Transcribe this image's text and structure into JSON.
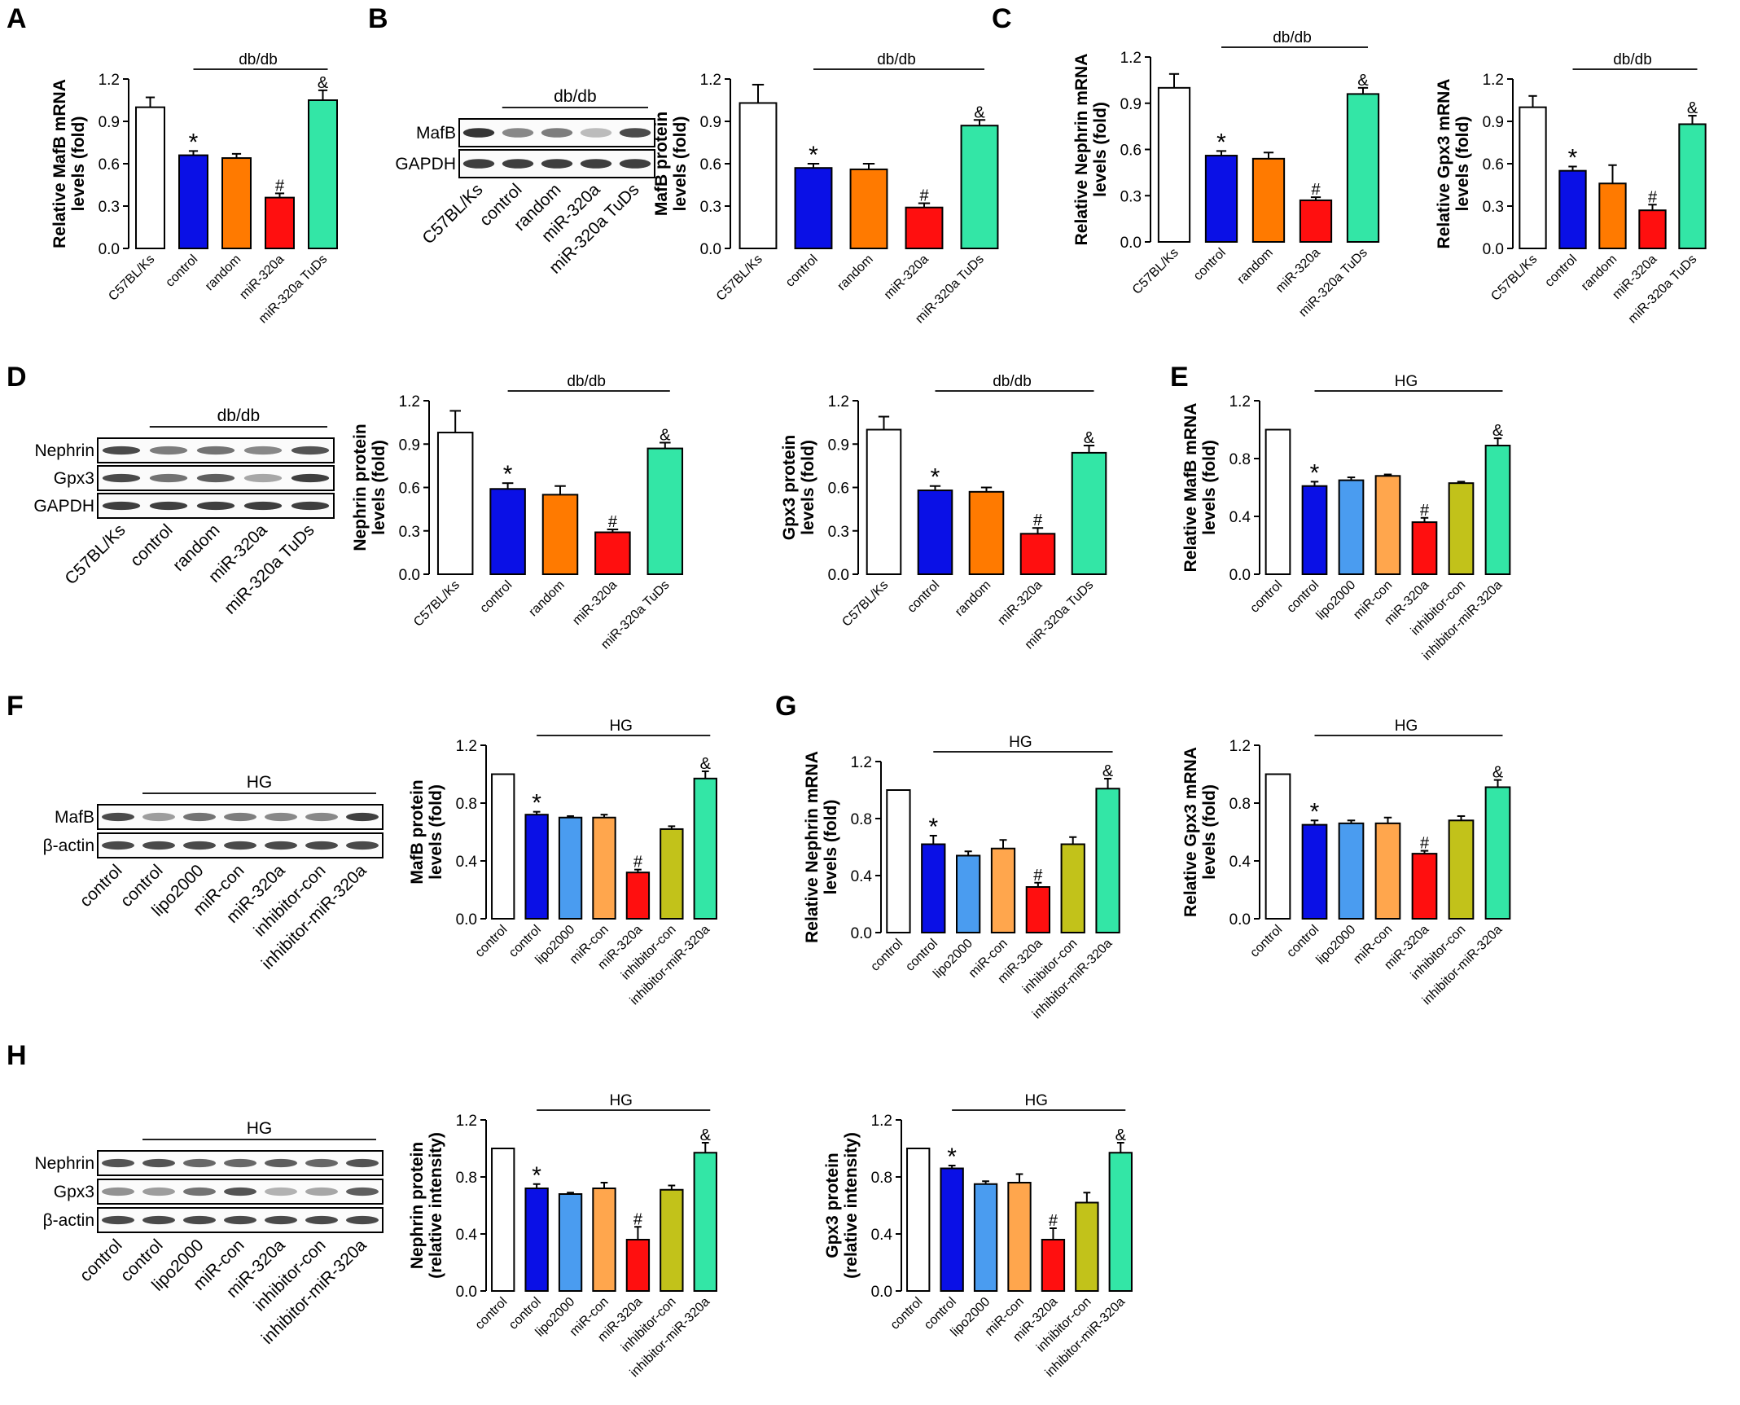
{
  "colors": {
    "white": "#ffffff",
    "blue": "#0a10e6",
    "orange": "#ff7a00",
    "red": "#ff0f0f",
    "teal": "#33e6a6",
    "lightblue": "#4a9cf0",
    "lightorange": "#ffa64d",
    "olive": "#c2c21a",
    "band": "#2a2a2a"
  },
  "panel_letters": {
    "A": "A",
    "B": "B",
    "C": "C",
    "D": "D",
    "E": "E",
    "F": "F",
    "G": "G",
    "H": "H"
  },
  "chart_data": [
    {
      "id": "A",
      "type": "bar",
      "ylabel": [
        "Relative MafB mRNA",
        "levels (fold)"
      ],
      "categories": [
        "C57BL/Ks",
        "control",
        "random",
        "miR-320a",
        "miR-320a TuDs"
      ],
      "values": [
        1.0,
        0.66,
        0.64,
        0.36,
        1.05
      ],
      "errors": [
        0.07,
        0.03,
        0.03,
        0.03,
        0.07
      ],
      "colors": [
        "white",
        "blue",
        "orange",
        "red",
        "teal"
      ],
      "ylim": [
        0,
        1.2
      ],
      "yticks": [
        "0.0",
        "0.3",
        "0.6",
        "0.9",
        "1.2"
      ],
      "group_label": "db/db",
      "symbols": [
        "",
        "*",
        "",
        "#",
        "&"
      ]
    },
    {
      "id": "B",
      "type": "bar",
      "ylabel": [
        "MafB protein",
        "levels (fold)"
      ],
      "categories": [
        "C57BL/Ks",
        "control",
        "random",
        "miR-320a",
        "miR-320a TuDs"
      ],
      "values": [
        1.03,
        0.57,
        0.56,
        0.29,
        0.87
      ],
      "errors": [
        0.13,
        0.03,
        0.04,
        0.03,
        0.04
      ],
      "colors": [
        "white",
        "blue",
        "orange",
        "red",
        "teal"
      ],
      "ylim": [
        0,
        1.2
      ],
      "yticks": [
        "0.0",
        "0.3",
        "0.6",
        "0.9",
        "1.2"
      ],
      "group_label": "db/db",
      "symbols": [
        "",
        "*",
        "",
        "#",
        "&"
      ]
    },
    {
      "id": "C1",
      "type": "bar",
      "ylabel": [
        "Relative Nephrin mRNA",
        "levels (fold)"
      ],
      "categories": [
        "C57BL/Ks",
        "control",
        "random",
        "miR-320a",
        "miR-320a TuDs"
      ],
      "values": [
        1.0,
        0.56,
        0.54,
        0.27,
        0.96
      ],
      "errors": [
        0.09,
        0.03,
        0.04,
        0.02,
        0.04
      ],
      "colors": [
        "white",
        "blue",
        "orange",
        "red",
        "teal"
      ],
      "ylim": [
        0,
        1.2
      ],
      "yticks": [
        "0.0",
        "0.3",
        "0.6",
        "0.9",
        "1.2"
      ],
      "group_label": "db/db",
      "symbols": [
        "",
        "*",
        "",
        "#",
        "&"
      ]
    },
    {
      "id": "C2",
      "type": "bar",
      "ylabel": [
        "Relative Gpx3 mRNA",
        "levels (fold)"
      ],
      "categories": [
        "C57BL/Ks",
        "control",
        "random",
        "miR-320a",
        "miR-320a TuDs"
      ],
      "values": [
        1.0,
        0.55,
        0.46,
        0.27,
        0.88
      ],
      "errors": [
        0.08,
        0.03,
        0.13,
        0.04,
        0.06
      ],
      "colors": [
        "white",
        "blue",
        "orange",
        "red",
        "teal"
      ],
      "ylim": [
        0,
        1.2
      ],
      "yticks": [
        "0.0",
        "0.3",
        "0.6",
        "0.9",
        "1.2"
      ],
      "group_label": "db/db",
      "symbols": [
        "",
        "*",
        "",
        "#",
        "&"
      ]
    },
    {
      "id": "D1",
      "type": "bar",
      "ylabel": [
        "Nephrin protein",
        "levels (fold)"
      ],
      "categories": [
        "C57BL/Ks",
        "control",
        "random",
        "miR-320a",
        "miR-320a TuDs"
      ],
      "values": [
        0.98,
        0.59,
        0.55,
        0.29,
        0.87
      ],
      "errors": [
        0.15,
        0.04,
        0.06,
        0.02,
        0.04
      ],
      "colors": [
        "white",
        "blue",
        "orange",
        "red",
        "teal"
      ],
      "ylim": [
        0,
        1.2
      ],
      "yticks": [
        "0.0",
        "0.3",
        "0.6",
        "0.9",
        "1.2"
      ],
      "group_label": "db/db",
      "symbols": [
        "",
        "*",
        "",
        "#",
        "&"
      ]
    },
    {
      "id": "D2",
      "type": "bar",
      "ylabel": [
        "Gpx3 protein",
        "levels (fold)"
      ],
      "categories": [
        "C57BL/Ks",
        "control",
        "random",
        "miR-320a",
        "miR-320a TuDs"
      ],
      "values": [
        1.0,
        0.58,
        0.57,
        0.28,
        0.84
      ],
      "errors": [
        0.09,
        0.03,
        0.03,
        0.04,
        0.05
      ],
      "colors": [
        "white",
        "blue",
        "orange",
        "red",
        "teal"
      ],
      "ylim": [
        0,
        1.2
      ],
      "yticks": [
        "0.0",
        "0.3",
        "0.6",
        "0.9",
        "1.2"
      ],
      "group_label": "db/db",
      "symbols": [
        "",
        "*",
        "",
        "#",
        "&"
      ]
    },
    {
      "id": "E",
      "type": "bar",
      "ylabel": [
        "Relative MafB mRNA",
        "levels (fold)"
      ],
      "categories": [
        "control",
        "control",
        "lipo2000",
        "miR-con",
        "miR-320a",
        "inhibitor-con",
        "inhibitor-miR-320a"
      ],
      "values": [
        1.0,
        0.61,
        0.65,
        0.68,
        0.36,
        0.63,
        0.89
      ],
      "errors": [
        0,
        0.03,
        0.02,
        0.01,
        0.03,
        0.01,
        0.05
      ],
      "colors": [
        "white",
        "blue",
        "lightblue",
        "lightorange",
        "red",
        "olive",
        "teal"
      ],
      "ylim": [
        0,
        1.2
      ],
      "yticks": [
        "0.0",
        "0.4",
        "0.8",
        "1.2"
      ],
      "group_label": "HG",
      "symbols": [
        "",
        "*",
        "",
        "",
        "#",
        "",
        "&"
      ]
    },
    {
      "id": "F",
      "type": "bar",
      "ylabel": [
        "MafB protein",
        "levels (fold)"
      ],
      "categories": [
        "control",
        "control",
        "lipo2000",
        "miR-con",
        "miR-320a",
        "inhibitor-con",
        "inhibitor-miR-320a"
      ],
      "values": [
        1.0,
        0.72,
        0.7,
        0.7,
        0.32,
        0.62,
        0.97
      ],
      "errors": [
        0,
        0.02,
        0.01,
        0.02,
        0.02,
        0.02,
        0.05
      ],
      "colors": [
        "white",
        "blue",
        "lightblue",
        "lightorange",
        "red",
        "olive",
        "teal"
      ],
      "ylim": [
        0,
        1.2
      ],
      "yticks": [
        "0.0",
        "0.4",
        "0.8",
        "1.2"
      ],
      "group_label": "HG",
      "symbols": [
        "",
        "*",
        "",
        "",
        "#",
        "",
        "&"
      ]
    },
    {
      "id": "G1",
      "type": "bar",
      "ylabel": [
        "Relative Nephrin mRNA",
        "levels (fold)"
      ],
      "categories": [
        "control",
        "control",
        "lipo2000",
        "miR-con",
        "miR-320a",
        "inhibitor-con",
        "inhibitor-miR-320a"
      ],
      "values": [
        1.0,
        0.62,
        0.54,
        0.59,
        0.32,
        0.62,
        1.01
      ],
      "errors": [
        0,
        0.06,
        0.03,
        0.06,
        0.03,
        0.05,
        0.07
      ],
      "colors": [
        "white",
        "blue",
        "lightblue",
        "lightorange",
        "red",
        "olive",
        "teal"
      ],
      "ylim": [
        0,
        1.2
      ],
      "yticks": [
        "0.0",
        "0.4",
        "0.8",
        "1.2"
      ],
      "group_label": "HG",
      "symbols": [
        "",
        "*",
        "",
        "",
        "#",
        "",
        "&"
      ]
    },
    {
      "id": "G2",
      "type": "bar",
      "ylabel": [
        "Relative Gpx3 mRNA",
        "levels (fold)"
      ],
      "categories": [
        "control",
        "control",
        "lipo2000",
        "miR-con",
        "miR-320a",
        "inhibitor-con",
        "inhibitor-miR-320a"
      ],
      "values": [
        1.0,
        0.65,
        0.66,
        0.66,
        0.45,
        0.68,
        0.91
      ],
      "errors": [
        0,
        0.03,
        0.02,
        0.04,
        0.02,
        0.03,
        0.05
      ],
      "colors": [
        "white",
        "blue",
        "lightblue",
        "lightorange",
        "red",
        "olive",
        "teal"
      ],
      "ylim": [
        0,
        1.2
      ],
      "yticks": [
        "0.0",
        "0.4",
        "0.8",
        "1.2"
      ],
      "group_label": "HG",
      "symbols": [
        "",
        "*",
        "",
        "",
        "#",
        "",
        "&"
      ]
    },
    {
      "id": "H1",
      "type": "bar",
      "ylabel": [
        "Nephrin protein",
        "(relative intensity)"
      ],
      "categories": [
        "control",
        "control",
        "lipo2000",
        "miR-con",
        "miR-320a",
        "inhibitor-con",
        "inhibitor-miR-320a"
      ],
      "values": [
        1.0,
        0.72,
        0.68,
        0.72,
        0.36,
        0.71,
        0.97
      ],
      "errors": [
        0,
        0.03,
        0.01,
        0.04,
        0.09,
        0.03,
        0.07
      ],
      "colors": [
        "white",
        "blue",
        "lightblue",
        "lightorange",
        "red",
        "olive",
        "teal"
      ],
      "ylim": [
        0,
        1.2
      ],
      "yticks": [
        "0.0",
        "0.4",
        "0.8",
        "1.2"
      ],
      "group_label": "HG",
      "symbols": [
        "",
        "*",
        "",
        "",
        "#",
        "",
        "&"
      ]
    },
    {
      "id": "H2",
      "type": "bar",
      "ylabel": [
        "Gpx3 protein",
        "(relative intensity)"
      ],
      "categories": [
        "control",
        "control",
        "lipo2000",
        "miR-con",
        "miR-320a",
        "inhibitor-con",
        "inhibitor-miR-320a"
      ],
      "values": [
        1.0,
        0.86,
        0.75,
        0.76,
        0.36,
        0.62,
        0.97
      ],
      "errors": [
        0,
        0.02,
        0.02,
        0.06,
        0.08,
        0.07,
        0.07
      ],
      "colors": [
        "white",
        "blue",
        "lightblue",
        "lightorange",
        "red",
        "olive",
        "teal"
      ],
      "ylim": [
        0,
        1.2
      ],
      "yticks": [
        "0.0",
        "0.4",
        "0.8",
        "1.2"
      ],
      "group_label": "HG",
      "symbols": [
        "",
        "*",
        "",
        "",
        "#",
        "",
        "&"
      ]
    }
  ],
  "blots": [
    {
      "id": "B",
      "group_label": "db/db",
      "rows": [
        "MafB",
        "GAPDH"
      ],
      "lanes": [
        "C57BL/Ks",
        "control",
        "random",
        "miR-320a",
        "miR-320a TuDs"
      ],
      "intensity": [
        [
          0.95,
          0.55,
          0.6,
          0.3,
          0.85
        ],
        [
          0.9,
          0.9,
          0.9,
          0.9,
          0.9
        ]
      ]
    },
    {
      "id": "D",
      "group_label": "db/db",
      "rows": [
        "Nephrin",
        "Gpx3",
        "GAPDH"
      ],
      "lanes": [
        "C57BL/Ks",
        "control",
        "random",
        "miR-320a",
        "miR-320a TuDs"
      ],
      "intensity": [
        [
          0.85,
          0.6,
          0.65,
          0.55,
          0.8
        ],
        [
          0.85,
          0.65,
          0.75,
          0.4,
          0.9
        ],
        [
          0.9,
          0.9,
          0.9,
          0.9,
          0.9
        ]
      ]
    },
    {
      "id": "F",
      "group_label": "HG",
      "rows": [
        "MafB",
        "β-actin"
      ],
      "lanes": [
        "control",
        "control",
        "lipo2000",
        "miR-con",
        "miR-320a",
        "inhibitor-con",
        "inhibitor-miR-320a"
      ],
      "intensity": [
        [
          0.85,
          0.45,
          0.65,
          0.6,
          0.55,
          0.55,
          0.9
        ],
        [
          0.85,
          0.85,
          0.85,
          0.85,
          0.85,
          0.85,
          0.85
        ]
      ]
    },
    {
      "id": "H",
      "group_label": "HG",
      "rows": [
        "Nephrin",
        "Gpx3",
        "β-actin"
      ],
      "lanes": [
        "control",
        "control",
        "lipo2000",
        "miR-con",
        "miR-320a",
        "inhibitor-con",
        "inhibitor-miR-320a"
      ],
      "intensity": [
        [
          0.8,
          0.8,
          0.7,
          0.7,
          0.75,
          0.7,
          0.8
        ],
        [
          0.5,
          0.45,
          0.65,
          0.8,
          0.35,
          0.4,
          0.75
        ],
        [
          0.85,
          0.85,
          0.85,
          0.85,
          0.85,
          0.85,
          0.85
        ]
      ]
    }
  ]
}
